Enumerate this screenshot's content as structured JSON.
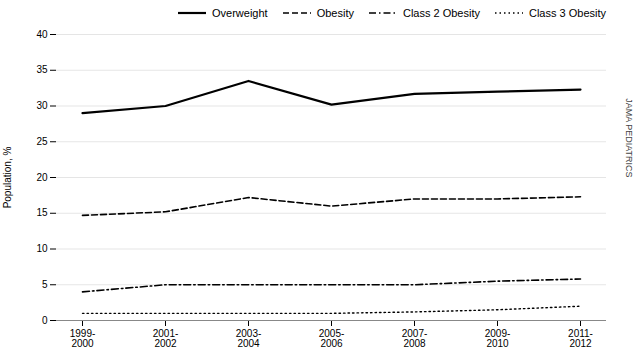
{
  "chart_data": {
    "type": "line",
    "categories": [
      "1999-\n2000",
      "2001-\n2002",
      "2003-\n2004",
      "2005-\n2006",
      "2007-\n2008",
      "2009-\n2010",
      "2011-\n2012"
    ],
    "series": [
      {
        "name": "Overweight",
        "color": "#000000",
        "line_style": "solid",
        "values": [
          29.0,
          30.0,
          33.5,
          30.2,
          31.7,
          32.0,
          32.3
        ]
      },
      {
        "name": "Obesity",
        "color": "#000000",
        "line_style": "dashed",
        "values": [
          14.7,
          15.2,
          17.2,
          16.0,
          17.0,
          17.0,
          17.3
        ]
      },
      {
        "name": "Class 2 Obesity",
        "color": "#000000",
        "line_style": "dashdot",
        "values": [
          4.0,
          5.0,
          5.0,
          5.0,
          5.0,
          5.5,
          5.8
        ]
      },
      {
        "name": "Class 3 Obesity",
        "color": "#000000",
        "line_style": "dotted",
        "values": [
          1.0,
          1.0,
          1.0,
          1.0,
          1.2,
          1.5,
          2.0
        ]
      }
    ],
    "ylabel": "Population, %",
    "ylim": [
      0,
      40
    ],
    "yticks": [
      0,
      5,
      10,
      15,
      20,
      25,
      30,
      35,
      40
    ],
    "grid": true,
    "legend": "upper right",
    "annotations": [
      "JAMA PEDIATRICS"
    ]
  }
}
